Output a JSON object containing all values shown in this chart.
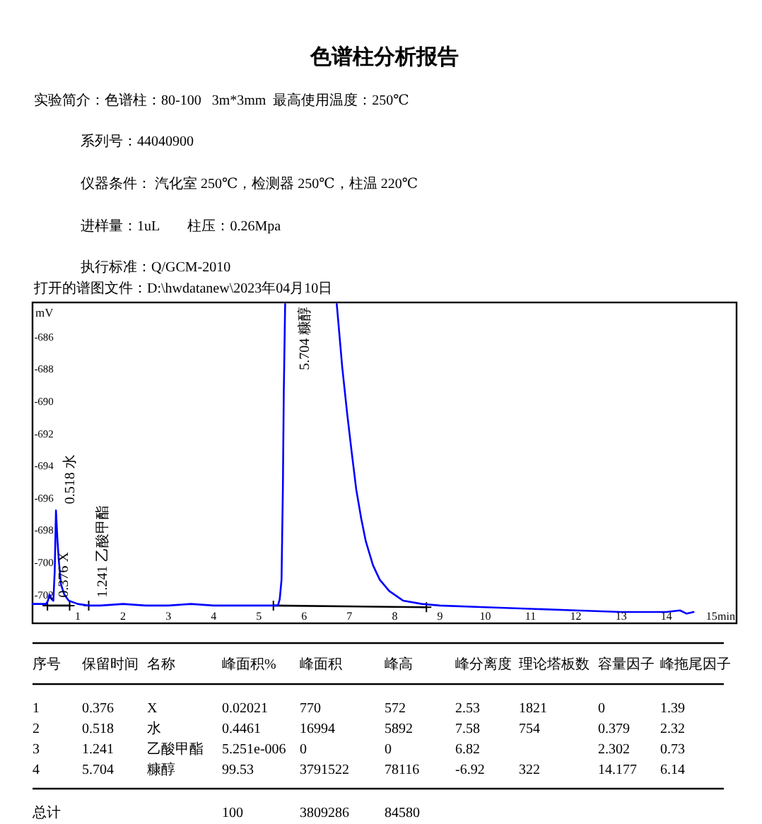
{
  "chart_data": {
    "type": "line",
    "title": "色谱柱分析报告",
    "xlabel": "min",
    "ylabel": "mV",
    "xlim": [
      0,
      15.55
    ],
    "ylim": [
      -703.7,
      -683.8
    ],
    "xticks": [
      1,
      2,
      3,
      4,
      5,
      6,
      7,
      8,
      9,
      10,
      11,
      12,
      13,
      14,
      15
    ],
    "yticks": [
      -702,
      -700,
      -698,
      -696,
      -694,
      -692,
      -690,
      -688,
      -686
    ],
    "series": [
      {
        "type": "line",
        "color": "#000000",
        "marker": "cross",
        "x": [
          0.33,
          0.82
        ],
        "values": [
          -702.6,
          -702.6
        ]
      },
      {
        "type": "line",
        "color": "#000000",
        "marker": "cross",
        "x": [
          5.32,
          8.7
        ],
        "values": [
          -702.6,
          -702.7
        ]
      },
      {
        "type": "scatter",
        "color": "#000000",
        "marker": "cross",
        "x": [
          1.241
        ],
        "values": [
          -702.6
        ]
      },
      {
        "type": "line",
        "color": "#0000ff",
        "x": [
          0,
          0.3,
          0.34,
          0.376,
          0.42,
          0.46,
          0.49,
          0.518,
          0.55,
          0.58,
          0.63,
          0.7,
          0.8,
          1.0,
          1.241,
          1.5,
          2.0,
          2.5,
          3.0,
          3.5,
          4.0,
          4.5,
          5.0,
          5.3,
          5.42,
          5.46,
          5.5,
          5.53,
          5.55,
          5.58,
          5.704,
          6.72,
          6.84,
          6.95,
          7.05,
          7.15,
          7.26,
          7.36,
          7.52,
          7.67,
          7.88,
          8.19,
          8.6,
          9,
          10,
          11,
          12,
          13,
          14,
          14.3,
          14.45,
          14.6
        ],
        "values": [
          -702.5,
          -702.5,
          -702.3,
          -701.9,
          -702.2,
          -702.3,
          -700.5,
          -696.7,
          -698.5,
          -699.8,
          -701.3,
          -701.9,
          -702.3,
          -702.5,
          -702.6,
          -702.6,
          -702.5,
          -702.6,
          -702.6,
          -702.5,
          -702.6,
          -702.6,
          -702.6,
          -702.6,
          -702.6,
          -702.2,
          -701.0,
          -695.3,
          -689.3,
          -683.9,
          null,
          -683.9,
          -687.8,
          -690.7,
          -693.1,
          -695.4,
          -697.2,
          -698.6,
          -700.1,
          -701.0,
          -701.7,
          -702.3,
          -702.5,
          -702.6,
          -702.7,
          -702.8,
          -702.9,
          -703.0,
          -703.0,
          -702.9,
          -703.1,
          -703.0
        ]
      }
    ],
    "annotations": [
      "实验简介：色谱柱：80-100   3m*3mm  最高使用温度：250℃",
      "系列号：44040900",
      "仪器条件： 汽化室 250℃，检测器 250℃，柱温 220℃",
      "进样量：1uL        柱压：0.26Mpa",
      "执行标准：Q/GCM-2010",
      "打开的谱图文件：D:\\hwdatanew\\2023年04月10日",
      "序号\t保留时间\t名称\t峰面积%\t峰面积\t峰高\t峰分离度\t理论塔板数\t容量因子\t峰拖尾因子",
      "1\t0.376\tX\t0.02021\t770\t572\t2.53\t1821\t0\t1.39",
      "2\t0.518\t水\t0.4461\t16994\t5892\t7.58\t754\t0.379\t2.32",
      "3\t1.241\t乙酸甲酯\t5.251e-006\t0\t0\t6.82\t\t2.302\t0.73",
      "4\t5.704\t糠醇\t99.53\t3791522\t78116\t-6.92\t322\t14.177\t6.14",
      "总计\t\t\t100\t3809286\t84580",
      {
        "text": "0.376 X",
        "x": 0.376,
        "y": -702.1
      },
      {
        "text": "0.518 水",
        "x": 0.518,
        "y": -696.3
      },
      {
        "text": "1.241 乙酸甲酯",
        "x": 1.241,
        "y": -702.1
      },
      {
        "text": "5.704 糠醇",
        "x": 5.704,
        "y": -688.0
      }
    ]
  }
}
